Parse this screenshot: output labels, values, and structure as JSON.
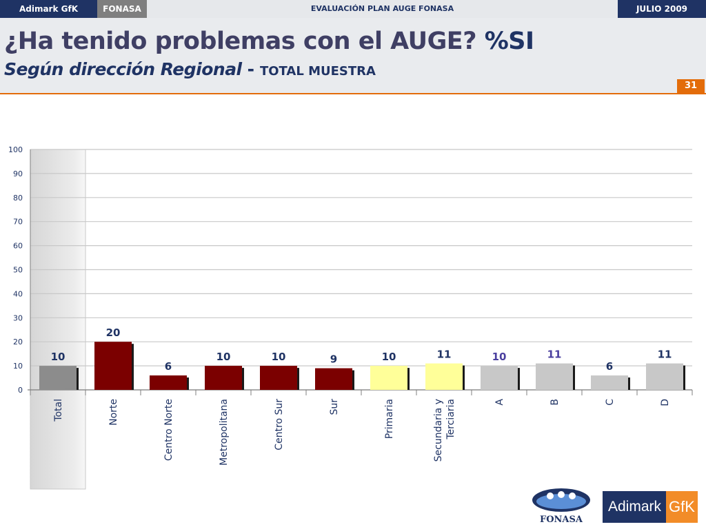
{
  "header": {
    "left_brand": "Adimark GfK",
    "fonasa_tab": "FONASA",
    "report_title": "EVALUACIÓN PLAN AUGE FONASA",
    "date": "JULIO 2009"
  },
  "slide": {
    "title_main": "¿Ha tenido problemas con el AUGE?",
    "title_accent": "%SI",
    "subtitle_italic": "Según dirección Regional",
    "subtitle_sep": "-",
    "subtitle_rest": "TOTAL MUESTRA",
    "page_number": "31"
  },
  "logos": {
    "fonasa": "FONASA",
    "adimark": "Adimark",
    "gfk": "GfK"
  },
  "colors": {
    "navy": "#1f3364",
    "orange": "#e36c0a",
    "total_bar": "#8c8c8c",
    "region_bar": "#7b0000",
    "education_bar": "#ffff99",
    "ses_bar": "#c8c8c8",
    "label_dark": "#1f3364",
    "label_purple": "#4a3f9f"
  },
  "chart_data": {
    "type": "bar",
    "title": "",
    "xlabel": "",
    "ylabel": "",
    "ylim": [
      0,
      100
    ],
    "yticks": [
      "0",
      "10",
      "20",
      "30",
      "40",
      "50",
      "60",
      "70",
      "80",
      "90",
      "100"
    ],
    "grid": true,
    "legend": "none",
    "categories": [
      "Total",
      "Norte",
      "Centro Norte",
      "Metropolitana",
      "Centro Sur",
      "Sur",
      "Primaria",
      "Secundaria y Terciaria",
      "A",
      "B",
      "C",
      "D"
    ],
    "category_lines": [
      [
        "Total"
      ],
      [
        "Norte"
      ],
      [
        "Centro Norte"
      ],
      [
        "Metropolitana"
      ],
      [
        "Centro Sur"
      ],
      [
        "Sur"
      ],
      [
        "Primaria"
      ],
      [
        "Secundaria y",
        "Terciaria"
      ],
      [
        "A"
      ],
      [
        "B"
      ],
      [
        "C"
      ],
      [
        "D"
      ]
    ],
    "values": [
      10,
      20,
      6,
      10,
      10,
      9,
      10,
      11,
      10,
      11,
      6,
      11
    ],
    "data_labels": [
      "10",
      "20",
      "6",
      "10",
      "10",
      "9",
      "10",
      "11",
      "10",
      "11",
      "6",
      "11"
    ],
    "bar_groups": [
      "total",
      "region",
      "region",
      "region",
      "region",
      "region",
      "education",
      "education",
      "ses",
      "ses",
      "ses",
      "ses"
    ],
    "label_colors": [
      "dark",
      "dark",
      "dark",
      "dark",
      "dark",
      "dark",
      "dark",
      "dark",
      "purple",
      "purple",
      "dark",
      "dark"
    ]
  }
}
